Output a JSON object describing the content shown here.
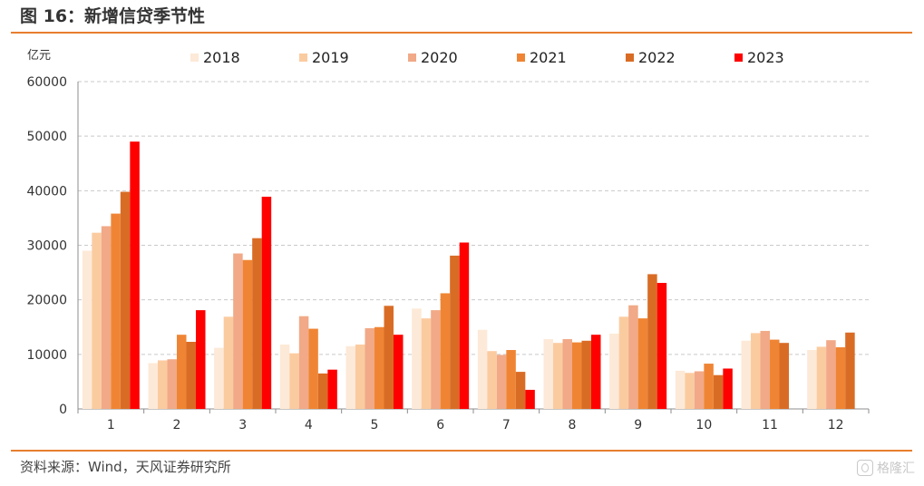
{
  "figure": {
    "title": "图 16：新增信贷季节性",
    "source": "资料来源：Wind，天风证券研究所",
    "watermark": "格隆汇"
  },
  "theme": {
    "rule_color": "#e87e2e",
    "grid_color": "#c9c9c9",
    "axis_color": "#8c8c8c"
  },
  "chart_data": {
    "type": "bar",
    "title": "",
    "xlabel": "",
    "ylabel": "亿元",
    "ylim": [
      0,
      60000
    ],
    "yticks": [
      0,
      10000,
      20000,
      30000,
      40000,
      50000,
      60000
    ],
    "grid": true,
    "legend_position": "top",
    "categories": [
      "1",
      "2",
      "3",
      "4",
      "5",
      "6",
      "7",
      "8",
      "9",
      "10",
      "11",
      "12"
    ],
    "series": [
      {
        "name": "2018",
        "color": "#fde9d7",
        "values": [
          29000,
          8400,
          11200,
          11800,
          11500,
          18400,
          14500,
          12800,
          13800,
          7000,
          12500,
          10800
        ]
      },
      {
        "name": "2019",
        "color": "#fbcba0",
        "values": [
          32300,
          8900,
          16900,
          10200,
          11800,
          16600,
          10600,
          12100,
          16900,
          6600,
          13900,
          11400
        ]
      },
      {
        "name": "2020",
        "color": "#f1a987",
        "values": [
          33500,
          9100,
          28500,
          17000,
          14800,
          18100,
          9900,
          12800,
          19000,
          6900,
          14300,
          12600
        ]
      },
      {
        "name": "2021",
        "color": "#ef8534",
        "values": [
          35800,
          13600,
          27300,
          14700,
          15000,
          21200,
          10800,
          12200,
          16600,
          8300,
          12700,
          11300
        ]
      },
      {
        "name": "2022",
        "color": "#d96c25",
        "values": [
          39800,
          12300,
          31300,
          6500,
          18900,
          28100,
          6800,
          12500,
          24700,
          6200,
          12100,
          14000
        ]
      },
      {
        "name": "2023",
        "color": "#ff0000",
        "values": [
          49000,
          18100,
          38900,
          7200,
          13600,
          30500,
          3500,
          13600,
          23100,
          7400,
          null,
          null
        ]
      }
    ]
  }
}
